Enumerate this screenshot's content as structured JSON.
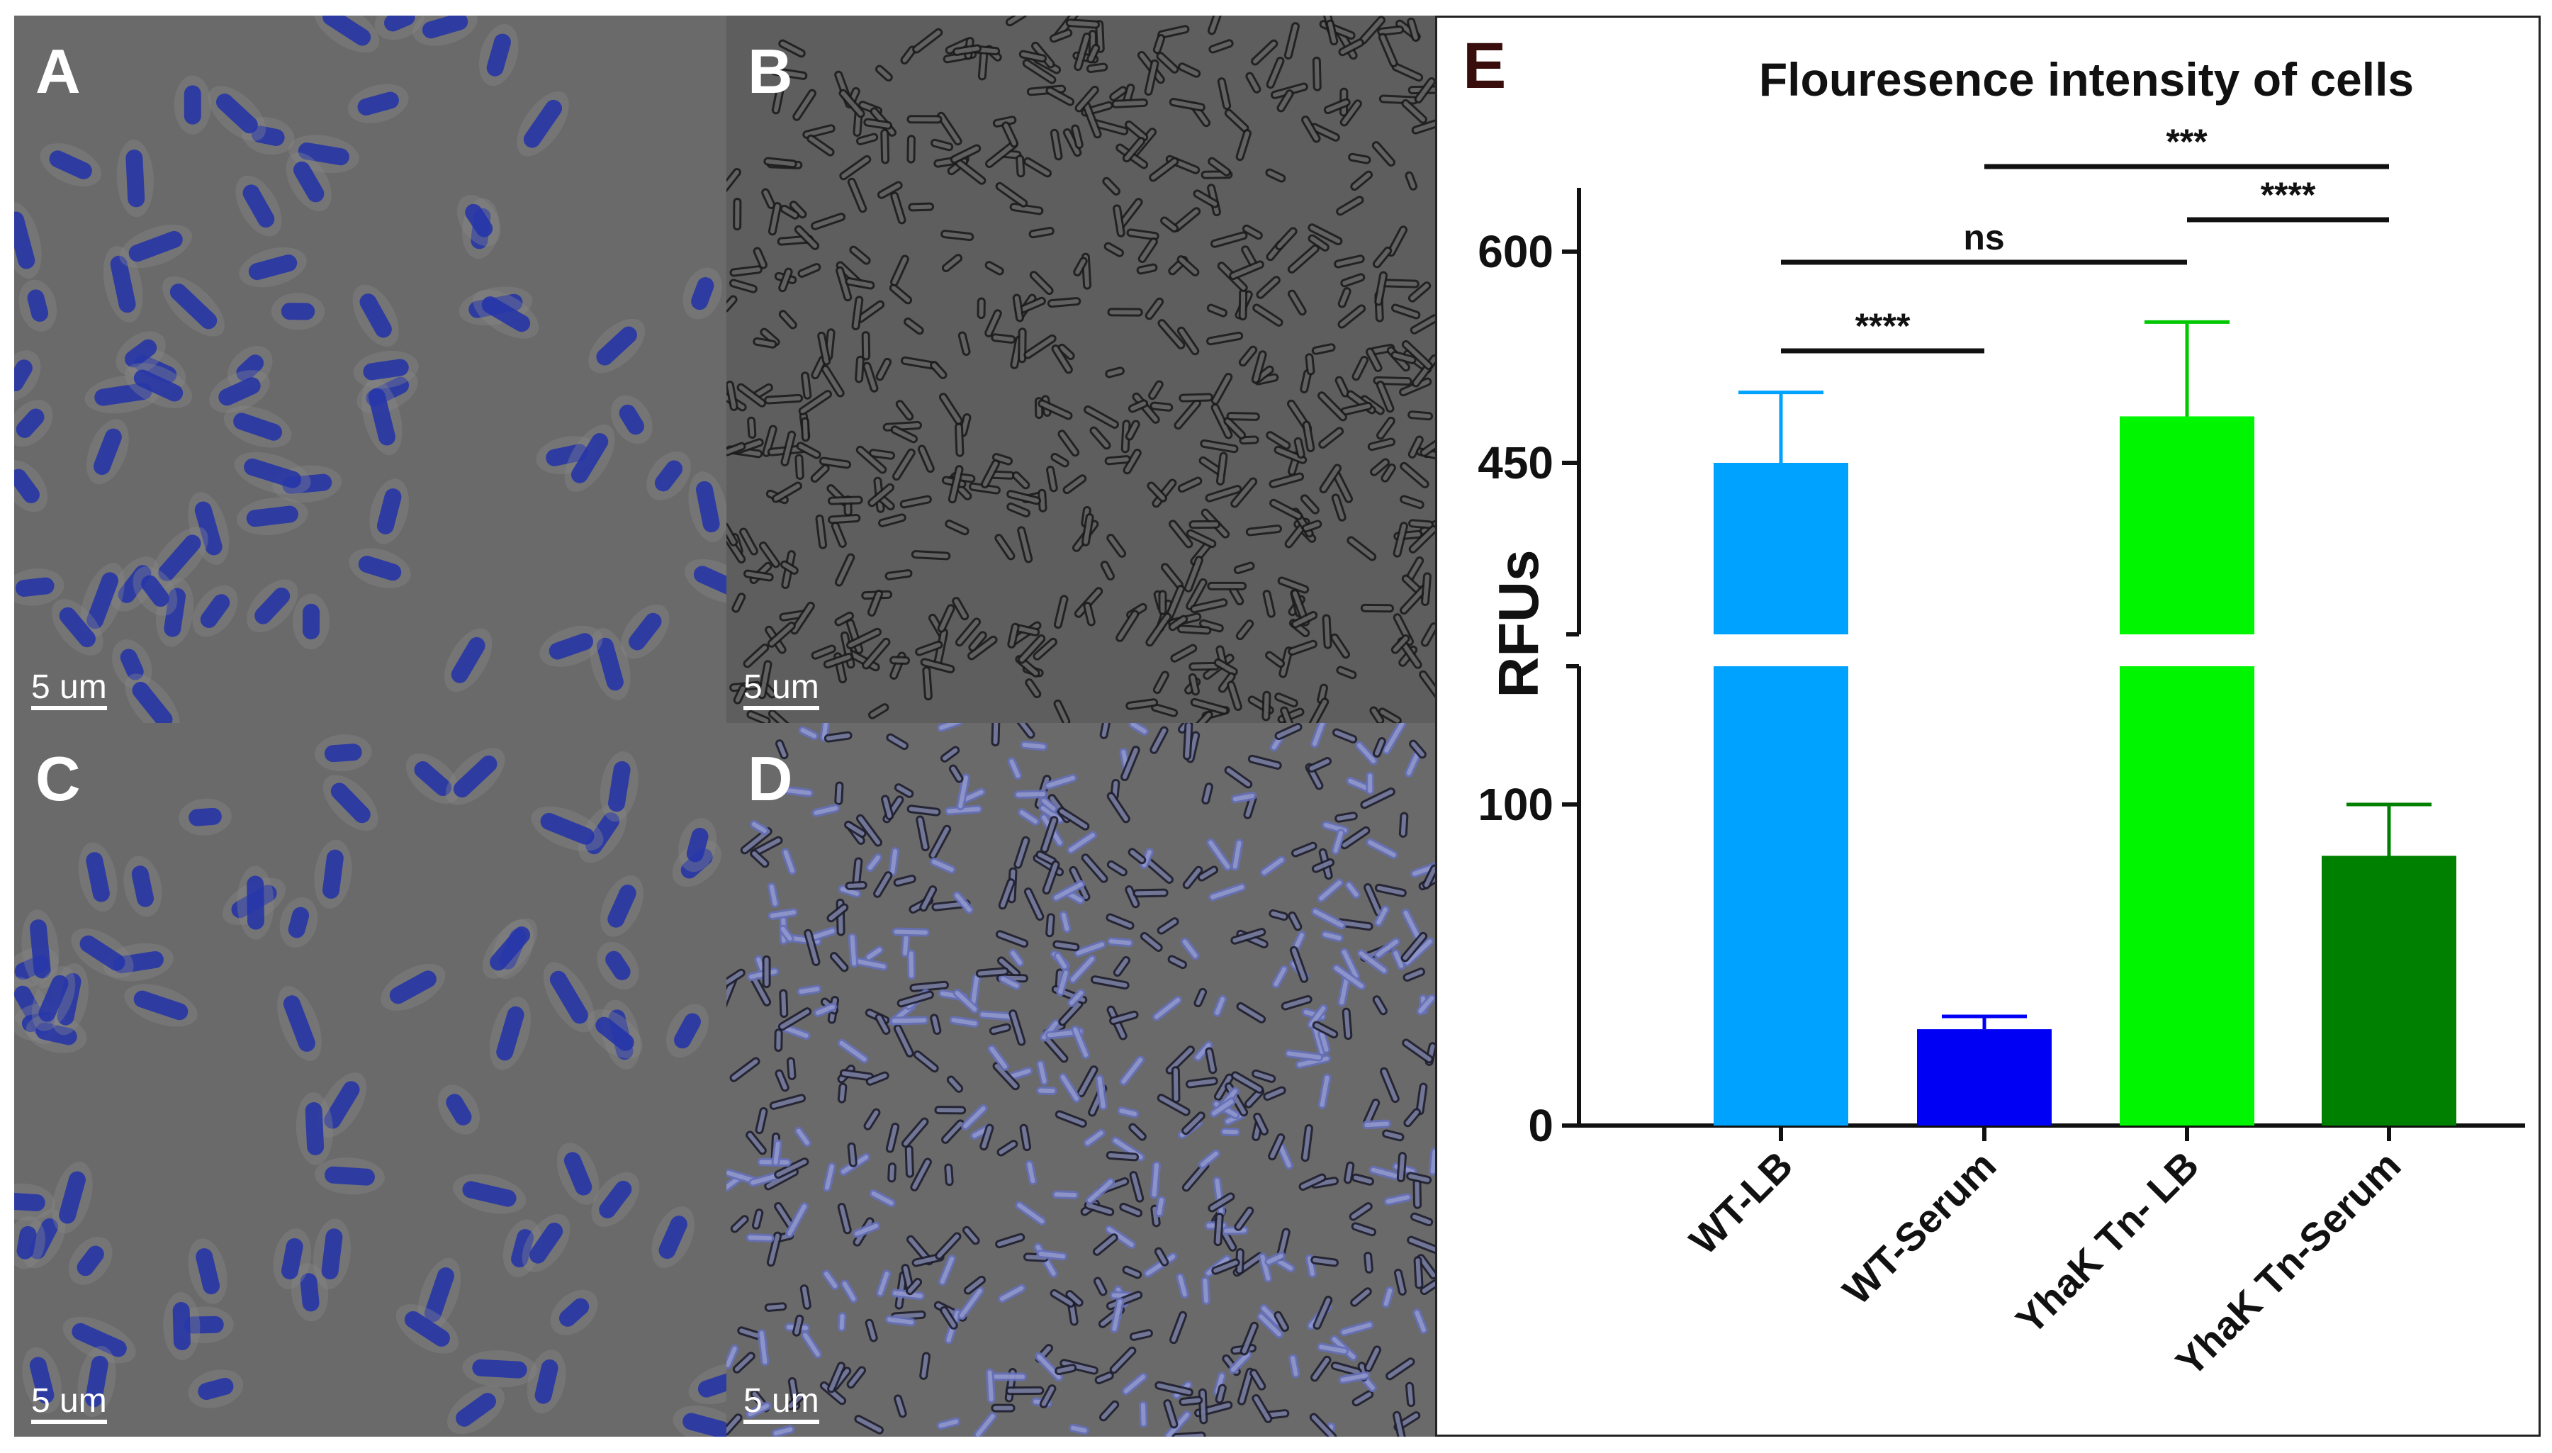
{
  "panels": {
    "A": {
      "letter": "A",
      "scale": "5 um",
      "style": "blue_sparse"
    },
    "B": {
      "letter": "B",
      "scale": "5 um",
      "style": "dense_dark"
    },
    "C": {
      "letter": "C",
      "scale": "5 um",
      "style": "blue_sparse"
    },
    "D": {
      "letter": "D",
      "scale": "5 um",
      "style": "dense_blue"
    }
  },
  "chart_panel": {
    "letter": "E"
  },
  "chart_data": {
    "type": "bar",
    "title": "Flouresence intensity of cells",
    "ylabel": "RFUs",
    "xlabel": "",
    "categories": [
      "WT-LB",
      "WT-Serum",
      "YhaK Tn- LB",
      "YhaK Tn-Serum"
    ],
    "values": [
      450,
      30,
      483,
      84
    ],
    "error_upper": [
      500,
      34,
      550,
      100
    ],
    "colors": [
      "#00a2ff",
      "#0000f5",
      "#00f500",
      "#008000"
    ],
    "error_colors": [
      "#00a2ff",
      "#0000f5",
      "#00c800",
      "#008000"
    ],
    "axis_break": {
      "lower_segment": [
        0,
        150
      ],
      "upper_segment": [
        325,
        650
      ]
    },
    "yticks": [
      0,
      100,
      450,
      600
    ],
    "comparisons": [
      {
        "from": 0,
        "to": 1,
        "label": "****",
        "level": 1
      },
      {
        "from": 0,
        "to": 2,
        "label": "ns",
        "level": 2
      },
      {
        "from": 2,
        "to": 3,
        "label": "****",
        "level": 3
      },
      {
        "from": 1,
        "to": 3,
        "label": "***",
        "level": 4
      }
    ]
  }
}
